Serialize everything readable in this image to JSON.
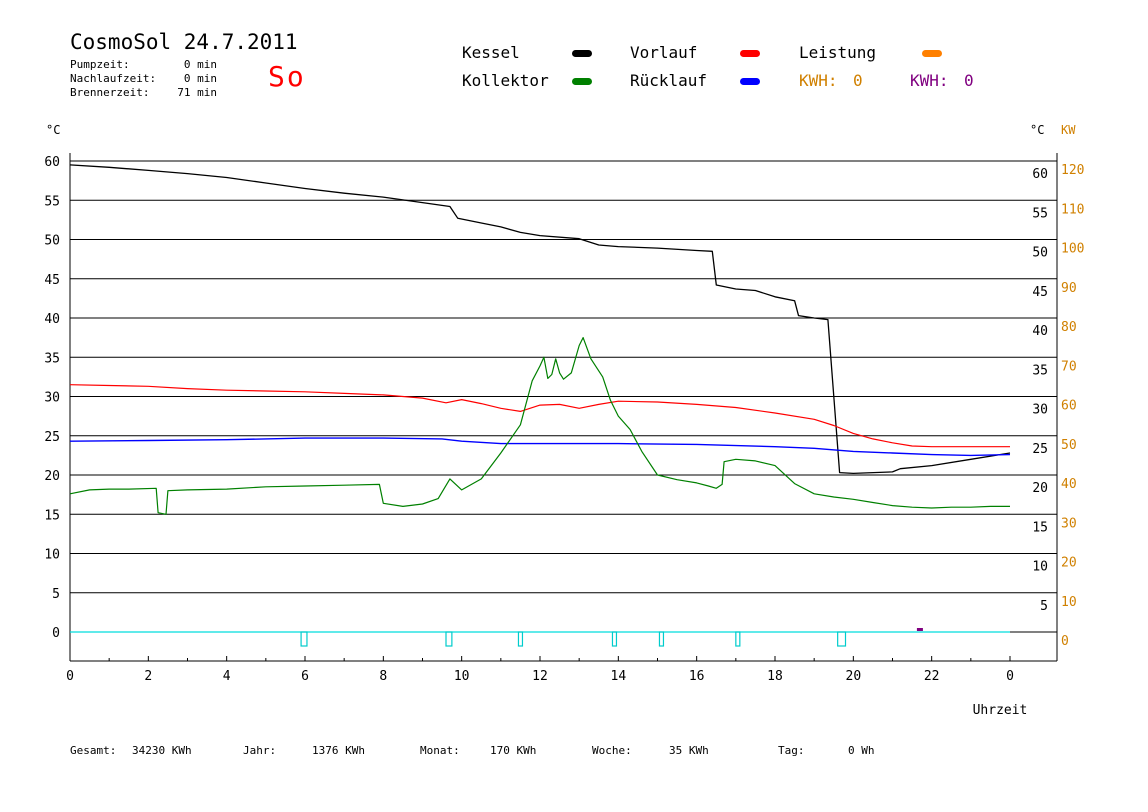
{
  "header": {
    "title": "CosmoSol 24.7.2011",
    "day": "So",
    "stats": [
      {
        "label": "Pumpzeit:",
        "value": "0 min"
      },
      {
        "label": "Nachlaufzeit:",
        "value": "0 min"
      },
      {
        "label": "Brennerzeit:",
        "value": "71 min"
      }
    ]
  },
  "legend": {
    "items": [
      {
        "label": "Kessel",
        "color": "#000000"
      },
      {
        "label": "Vorlauf",
        "color": "#ff0000"
      },
      {
        "label": "Leistung",
        "color": "#ff8000"
      },
      {
        "label": "Kollektor",
        "color": "#008000"
      },
      {
        "label": "Rücklauf",
        "color": "#0000ff"
      }
    ],
    "kwh_orange": {
      "label": "KWH:",
      "value": "0",
      "color": "#d08000"
    },
    "kwh_purple": {
      "label": "KWH:",
      "value": "0",
      "color": "#800080"
    }
  },
  "footer": {
    "items": [
      {
        "label": "Gesamt:",
        "value": "34230 KWh"
      },
      {
        "label": "Jahr:",
        "value": "1376 KWh"
      },
      {
        "label": "Monat:",
        "value": "170 KWh"
      },
      {
        "label": "Woche:",
        "value": "35 KWh"
      },
      {
        "label": "Tag:",
        "value": "0 Wh"
      }
    ]
  },
  "chart_data": {
    "type": "line",
    "xlabel": "Uhrzeit",
    "ylabel_left": "°C",
    "ylabel_right": "°C",
    "ylabel_right2": "KW",
    "xlim": [
      0,
      24
    ],
    "ylim": [
      0,
      60
    ],
    "ylim_kw": [
      0,
      120
    ],
    "x_ticks": [
      "0",
      "2",
      "4",
      "6",
      "8",
      "10",
      "12",
      "14",
      "16",
      "18",
      "20",
      "22",
      "0"
    ],
    "y_ticks_left": [
      "60",
      "55",
      "50",
      "45",
      "40",
      "35",
      "30",
      "25",
      "20",
      "15",
      "10",
      "5",
      "0"
    ],
    "y_ticks_right": [
      "60",
      "55",
      "50",
      "45",
      "40",
      "35",
      "30",
      "25",
      "20",
      "15",
      "10",
      "5"
    ],
    "y_ticks_kw": [
      "120",
      "110",
      "100",
      "90",
      "80",
      "70",
      "60",
      "50",
      "40",
      "30",
      "20",
      "10",
      "0"
    ],
    "series": [
      {
        "name": "Kessel",
        "color": "#000000",
        "points": [
          [
            0,
            59.5
          ],
          [
            1,
            59.2
          ],
          [
            2,
            58.8
          ],
          [
            3,
            58.4
          ],
          [
            4,
            57.9
          ],
          [
            5,
            57.2
          ],
          [
            6,
            56.5
          ],
          [
            7,
            55.9
          ],
          [
            8,
            55.4
          ],
          [
            9,
            54.7
          ],
          [
            9.7,
            54.2
          ],
          [
            9.9,
            52.7
          ],
          [
            10.5,
            52.1
          ],
          [
            11,
            51.6
          ],
          [
            11.5,
            50.9
          ],
          [
            12,
            50.5
          ],
          [
            13,
            50.1
          ],
          [
            13.5,
            49.3
          ],
          [
            14,
            49.1
          ],
          [
            15,
            48.9
          ],
          [
            16,
            48.6
          ],
          [
            16.4,
            48.5
          ],
          [
            16.5,
            44.2
          ],
          [
            17,
            43.7
          ],
          [
            17.5,
            43.5
          ],
          [
            18,
            42.7
          ],
          [
            18.5,
            42.2
          ],
          [
            18.6,
            40.3
          ],
          [
            19,
            40.0
          ],
          [
            19.35,
            39.8
          ],
          [
            19.5,
            30
          ],
          [
            19.65,
            20.3
          ],
          [
            20,
            20.2
          ],
          [
            21,
            20.4
          ],
          [
            21.2,
            20.8
          ],
          [
            22,
            21.2
          ],
          [
            23,
            22.0
          ],
          [
            24,
            22.8
          ]
        ]
      },
      {
        "name": "Vorlauf",
        "color": "#ff0000",
        "points": [
          [
            0,
            31.5
          ],
          [
            1,
            31.4
          ],
          [
            2,
            31.3
          ],
          [
            3,
            31.0
          ],
          [
            4,
            30.8
          ],
          [
            5,
            30.7
          ],
          [
            6,
            30.6
          ],
          [
            7,
            30.4
          ],
          [
            8,
            30.2
          ],
          [
            9,
            29.8
          ],
          [
            9.6,
            29.2
          ],
          [
            10,
            29.6
          ],
          [
            10.5,
            29.1
          ],
          [
            11,
            28.5
          ],
          [
            11.5,
            28.1
          ],
          [
            12,
            28.9
          ],
          [
            12.5,
            29.0
          ],
          [
            13,
            28.5
          ],
          [
            13.5,
            29.0
          ],
          [
            14,
            29.4
          ],
          [
            15,
            29.3
          ],
          [
            16,
            29.0
          ],
          [
            17,
            28.6
          ],
          [
            18,
            27.9
          ],
          [
            19,
            27.1
          ],
          [
            19.5,
            26.3
          ],
          [
            20,
            25.3
          ],
          [
            20.5,
            24.6
          ],
          [
            21,
            24.1
          ],
          [
            21.5,
            23.7
          ],
          [
            22,
            23.6
          ],
          [
            23,
            23.6
          ],
          [
            24,
            23.6
          ]
        ]
      },
      {
        "name": "Rücklauf",
        "color": "#0000ff",
        "points": [
          [
            0,
            24.3
          ],
          [
            2,
            24.4
          ],
          [
            4,
            24.5
          ],
          [
            6,
            24.7
          ],
          [
            8,
            24.7
          ],
          [
            9.5,
            24.6
          ],
          [
            10,
            24.3
          ],
          [
            11,
            24.0
          ],
          [
            12,
            24.0
          ],
          [
            14,
            24.0
          ],
          [
            16,
            23.9
          ],
          [
            18,
            23.6
          ],
          [
            19,
            23.4
          ],
          [
            20,
            23.0
          ],
          [
            21,
            22.8
          ],
          [
            22,
            22.6
          ],
          [
            23,
            22.5
          ],
          [
            24,
            22.6
          ]
        ]
      },
      {
        "name": "Kollektor",
        "color": "#008000",
        "points": [
          [
            0,
            17.6
          ],
          [
            0.5,
            18.1
          ],
          [
            1,
            18.2
          ],
          [
            1.5,
            18.2
          ],
          [
            2.2,
            18.3
          ],
          [
            2.25,
            15.2
          ],
          [
            2.45,
            15.0
          ],
          [
            2.5,
            18.0
          ],
          [
            3,
            18.1
          ],
          [
            4,
            18.2
          ],
          [
            5,
            18.5
          ],
          [
            6,
            18.6
          ],
          [
            7,
            18.7
          ],
          [
            7.9,
            18.8
          ],
          [
            8,
            16.4
          ],
          [
            8.5,
            16.0
          ],
          [
            9,
            16.3
          ],
          [
            9.4,
            17.0
          ],
          [
            9.7,
            19.5
          ],
          [
            10,
            18.1
          ],
          [
            10.5,
            19.5
          ],
          [
            11,
            22.8
          ],
          [
            11.5,
            26.4
          ],
          [
            11.8,
            32.0
          ],
          [
            12,
            33.9
          ],
          [
            12.1,
            35.0
          ],
          [
            12.2,
            32.3
          ],
          [
            12.3,
            32.8
          ],
          [
            12.4,
            34.8
          ],
          [
            12.5,
            33.0
          ],
          [
            12.6,
            32.2
          ],
          [
            12.8,
            33.0
          ],
          [
            13,
            36.5
          ],
          [
            13.1,
            37.5
          ],
          [
            13.3,
            34.8
          ],
          [
            13.6,
            32.5
          ],
          [
            13.8,
            29.5
          ],
          [
            14,
            27.5
          ],
          [
            14.3,
            25.8
          ],
          [
            14.6,
            23.0
          ],
          [
            15,
            20.0
          ],
          [
            15.5,
            19.4
          ],
          [
            16,
            19.0
          ],
          [
            16.3,
            18.6
          ],
          [
            16.5,
            18.3
          ],
          [
            16.65,
            18.8
          ],
          [
            16.7,
            21.7
          ],
          [
            17,
            22.0
          ],
          [
            17.5,
            21.8
          ],
          [
            18,
            21.2
          ],
          [
            18.5,
            18.9
          ],
          [
            19,
            17.6
          ],
          [
            19.5,
            17.2
          ],
          [
            20,
            16.9
          ],
          [
            20.5,
            16.5
          ],
          [
            21,
            16.1
          ],
          [
            21.5,
            15.9
          ],
          [
            22,
            15.8
          ],
          [
            22.5,
            15.9
          ],
          [
            23,
            15.9
          ],
          [
            23.5,
            16.0
          ],
          [
            24,
            16.0
          ]
        ]
      },
      {
        "name": "Brenner",
        "color": "#00dddd",
        "points": [
          [
            0,
            0
          ],
          [
            24,
            0
          ]
        ]
      }
    ],
    "burner_pulses": [
      [
        5.9,
        6.05
      ],
      [
        9.6,
        9.75
      ],
      [
        11.45,
        11.55
      ],
      [
        13.85,
        13.95
      ],
      [
        15.05,
        15.15
      ],
      [
        17.0,
        17.1
      ],
      [
        19.6,
        19.8
      ]
    ],
    "leistung_blip_x": 21.7
  }
}
